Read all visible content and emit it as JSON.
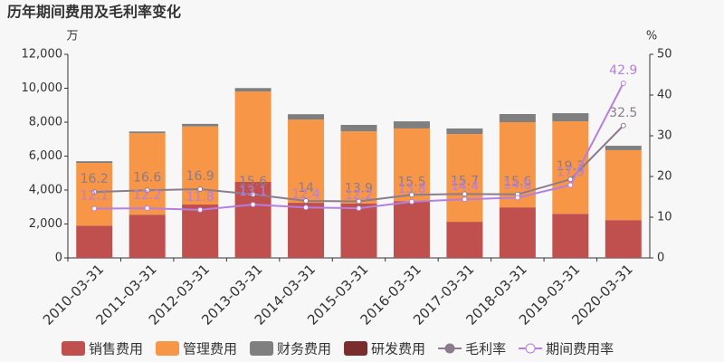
{
  "chart_data": {
    "type": "bar",
    "stacked": true,
    "title": "历年期间费用及毛利率变化",
    "y_unit": "万",
    "y2_unit": "%",
    "categories": [
      "2010-03-31",
      "2011-03-31",
      "2012-03-31",
      "2013-03-31",
      "2014-03-31",
      "2015-03-31",
      "2016-03-31",
      "2017-03-31",
      "2018-03-31",
      "2019-03-31",
      "2020-03-31"
    ],
    "series": [
      {
        "name": "销售费用",
        "type": "bar",
        "color": "#c0504d",
        "values": [
          1900,
          2550,
          3150,
          4480,
          3250,
          3200,
          3350,
          2130,
          2980,
          2600,
          2230
        ]
      },
      {
        "name": "管理费用",
        "type": "bar",
        "color": "#f79646",
        "values": [
          3700,
          4800,
          4600,
          5330,
          4900,
          4260,
          4280,
          5170,
          5020,
          5450,
          4120
        ]
      },
      {
        "name": "财务费用",
        "type": "bar",
        "color": "#7f7f7f",
        "values": [
          100,
          100,
          150,
          200,
          320,
          380,
          420,
          330,
          480,
          480,
          260
        ]
      },
      {
        "name": "研发费用",
        "type": "bar",
        "color": "#7b2c2c",
        "values": [
          0,
          0,
          0,
          0,
          0,
          0,
          0,
          0,
          0,
          0,
          0
        ]
      },
      {
        "name": "毛利率",
        "type": "line",
        "axis": "y2",
        "color": "#8c7b8c",
        "values": [
          16.2,
          16.6,
          16.9,
          15.6,
          14,
          13.9,
          15.5,
          15.7,
          15.6,
          19.3,
          32.5
        ]
      },
      {
        "name": "期间费用率",
        "type": "line",
        "axis": "y2",
        "color": "#b57ee0",
        "values": [
          12.1,
          12.2,
          11.8,
          13.1,
          12.4,
          12.2,
          13.8,
          14.4,
          14.8,
          17.9,
          42.9
        ]
      }
    ],
    "ylim": [
      0,
      12000
    ],
    "yticks": [
      0,
      {
        "value": 2000,
        "label": "2,000"
      },
      {
        "value": 4000,
        "label": "4,000"
      },
      {
        "value": 6000,
        "label": "6,000"
      },
      {
        "value": 8000,
        "label": "8,000"
      },
      {
        "value": 10000,
        "label": "10,000"
      },
      {
        "value": 12000,
        "label": "12,000"
      }
    ],
    "y2lim": [
      0,
      50
    ],
    "y2ticks": [
      0,
      10,
      20,
      30,
      40,
      50
    ],
    "grid": false,
    "legend": "bottom"
  }
}
